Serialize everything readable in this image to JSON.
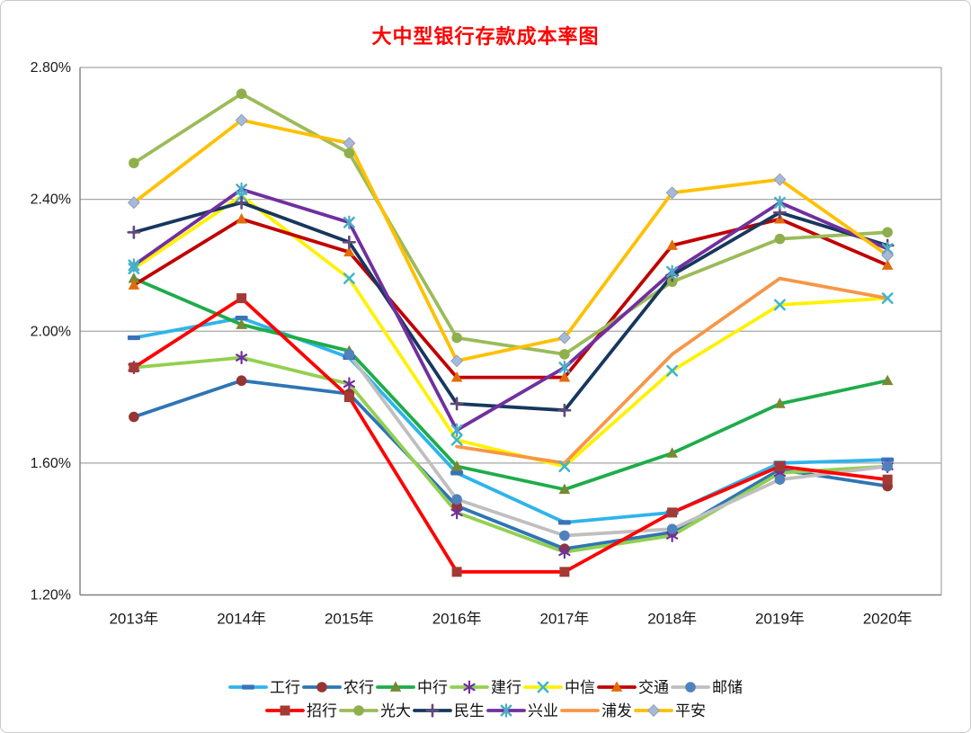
{
  "title": {
    "text": "大中型银行存款成本率图",
    "color": "#FF0000"
  },
  "chart_data": {
    "type": "line",
    "categories": [
      "2013年",
      "2014年",
      "2015年",
      "2016年",
      "2017年",
      "2018年",
      "2019年",
      "2020年"
    ],
    "y_axis": {
      "ticks": [
        "2.80%",
        "2.40%",
        "2.00%",
        "1.60%",
        "1.20%"
      ],
      "tick_values": [
        2.8,
        2.4,
        2.0,
        1.6,
        1.2
      ],
      "min": 1.2,
      "max": 2.8,
      "step": 0.4,
      "unit": "%"
    },
    "grid": "horizontal",
    "legend_position": "bottom",
    "legend_rows": [
      7,
      6
    ],
    "series": [
      {
        "name": "工行",
        "line_color": "#2FB4EA",
        "marker": "dash",
        "marker_color": "#3A73B9",
        "values": [
          1.98,
          2.04,
          1.92,
          1.57,
          1.42,
          1.45,
          1.6,
          1.61
        ]
      },
      {
        "name": "农行",
        "line_color": "#2E75B6",
        "marker": "circle",
        "marker_color": "#943634",
        "values": [
          1.74,
          1.85,
          1.81,
          1.47,
          1.34,
          1.39,
          1.58,
          1.53
        ]
      },
      {
        "name": "中行",
        "line_color": "#1FAC4B",
        "marker": "triangle",
        "marker_color": "#758A33",
        "values": [
          2.16,
          2.02,
          1.94,
          1.59,
          1.52,
          1.63,
          1.78,
          1.85
        ]
      },
      {
        "name": "建行",
        "line_color": "#92D050",
        "marker": "asterisk",
        "marker_color": "#7030A0",
        "values": [
          1.89,
          1.92,
          1.84,
          1.45,
          1.33,
          1.38,
          1.57,
          1.59
        ]
      },
      {
        "name": "中信",
        "line_color": "#FFF100",
        "marker": "x",
        "marker_color": "#3BB6D4",
        "values": [
          2.19,
          2.41,
          2.16,
          1.67,
          1.59,
          1.88,
          2.08,
          2.1
        ]
      },
      {
        "name": "交通",
        "line_color": "#C00000",
        "marker": "triangle",
        "marker_color": "#E26B0A",
        "values": [
          2.14,
          2.34,
          2.24,
          1.86,
          1.86,
          2.26,
          2.34,
          2.2
        ]
      },
      {
        "name": "邮储",
        "line_color": "#BFBFBF",
        "marker": "circle",
        "marker_color": "#4F81BD",
        "values": [
          null,
          null,
          1.93,
          1.49,
          1.38,
          1.4,
          1.55,
          1.59
        ]
      },
      {
        "name": "招行",
        "line_color": "#FF0000",
        "marker": "square",
        "marker_color": "#A43A36",
        "values": [
          1.89,
          2.1,
          1.8,
          1.27,
          1.27,
          1.45,
          1.59,
          1.55
        ]
      },
      {
        "name": "光大",
        "line_color": "#9BBB59",
        "marker": "circle",
        "marker_color": "#8FAF4C",
        "values": [
          2.51,
          2.72,
          2.54,
          1.98,
          1.93,
          2.15,
          2.28,
          2.3
        ]
      },
      {
        "name": "民生",
        "line_color": "#17375E",
        "marker": "plus",
        "marker_color": "#604A7B",
        "values": [
          2.3,
          2.39,
          2.27,
          1.78,
          1.76,
          2.17,
          2.36,
          2.26
        ]
      },
      {
        "name": "兴业",
        "line_color": "#7030A0",
        "marker": "xline",
        "marker_color": "#4BACC6",
        "values": [
          2.2,
          2.43,
          2.33,
          1.7,
          1.89,
          2.18,
          2.39,
          2.25
        ]
      },
      {
        "name": "浦发",
        "line_color": "#F79646",
        "marker": "none",
        "marker_color": "#F79646",
        "values": [
          null,
          null,
          null,
          1.65,
          1.6,
          1.93,
          2.16,
          2.1
        ]
      },
      {
        "name": "平安",
        "line_color": "#FFC000",
        "marker": "diamond",
        "marker_color": "#A7B9D8",
        "values": [
          2.39,
          2.64,
          2.57,
          1.91,
          1.98,
          2.42,
          2.46,
          2.23
        ]
      }
    ],
    "plot_colors": {
      "gridline": "#A6A6A6",
      "axis": "#808080",
      "tick_label": "#1a1a1a"
    }
  }
}
